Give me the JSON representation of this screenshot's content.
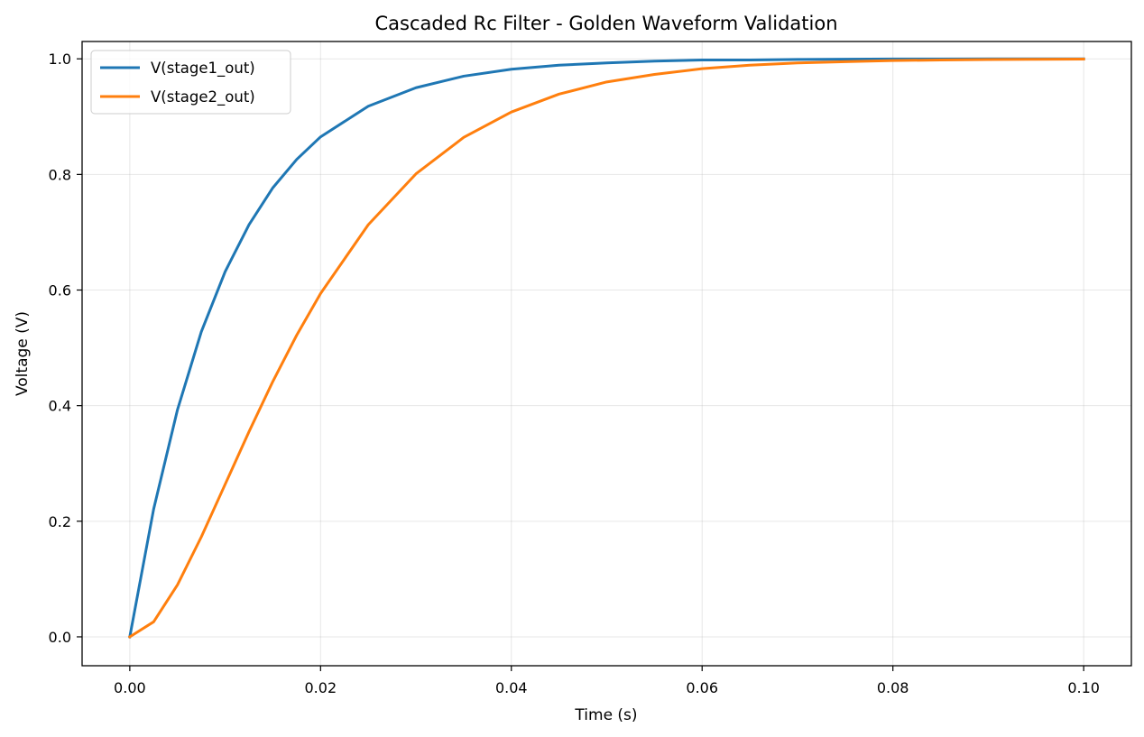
{
  "chart_data": {
    "type": "line",
    "title": "Cascaded Rc Filter - Golden Waveform Validation",
    "xlabel": "Time (s)",
    "ylabel": "Voltage (V)",
    "xlim": [
      -0.005,
      0.105
    ],
    "ylim": [
      -0.05,
      1.03
    ],
    "xticks": [
      0.0,
      0.02,
      0.04,
      0.06,
      0.08,
      0.1
    ],
    "xtick_labels": [
      "0.00",
      "0.02",
      "0.04",
      "0.06",
      "0.08",
      "0.10"
    ],
    "yticks": [
      0.0,
      0.2,
      0.4,
      0.6,
      0.8,
      1.0
    ],
    "ytick_labels": [
      "0.0",
      "0.2",
      "0.4",
      "0.6",
      "0.8",
      "1.0"
    ],
    "grid": true,
    "legend_position": "top-left",
    "x": [
      0,
      0.0025,
      0.005,
      0.0075,
      0.01,
      0.0125,
      0.015,
      0.0175,
      0.02,
      0.025,
      0.03,
      0.035,
      0.04,
      0.045,
      0.05,
      0.055,
      0.06,
      0.065,
      0.07,
      0.075,
      0.08,
      0.085,
      0.09,
      0.095,
      0.1
    ],
    "series": [
      {
        "name": "V(stage1_out)",
        "color": "#1f77b4",
        "values": [
          0,
          0.221,
          0.393,
          0.528,
          0.632,
          0.713,
          0.777,
          0.826,
          0.865,
          0.918,
          0.95,
          0.97,
          0.982,
          0.989,
          0.993,
          0.996,
          0.998,
          0.998,
          0.999,
          0.9994,
          0.9997,
          0.9998,
          0.9999,
          0.9999,
          1.0
        ]
      },
      {
        "name": "V(stage2_out)",
        "color": "#ff7f0e",
        "values": [
          0,
          0.026,
          0.09,
          0.173,
          0.264,
          0.355,
          0.442,
          0.522,
          0.594,
          0.713,
          0.801,
          0.864,
          0.908,
          0.939,
          0.96,
          0.973,
          0.983,
          0.989,
          0.993,
          0.995,
          0.997,
          0.998,
          0.9988,
          0.9992,
          0.9995
        ]
      }
    ]
  }
}
